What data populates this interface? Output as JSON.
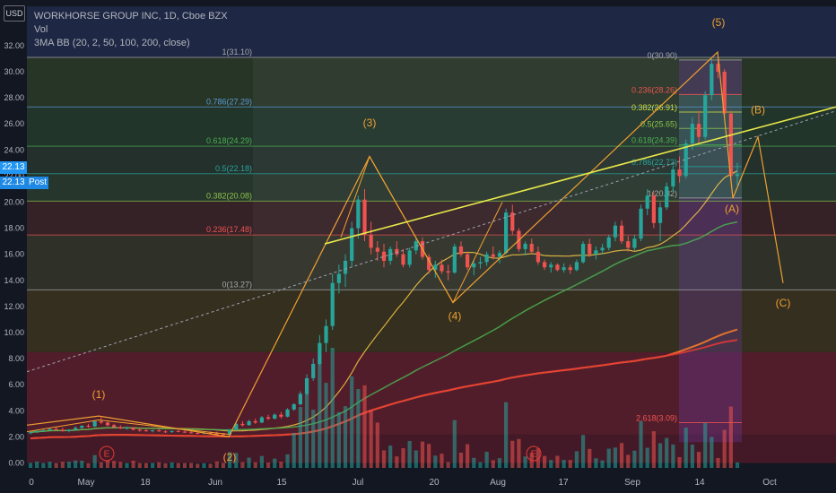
{
  "header": {
    "title": "WORKHORSE GROUP INC, 1D, Cboe BZX",
    "vol": "Vol",
    "indicator": "3MA BB (20, 2, 50, 100, 200, close)"
  },
  "currency": "USD",
  "price_tag": {
    "value": "22.13",
    "color": "#2196f3"
  },
  "post_tag": {
    "label": "22.13",
    "session": "Post",
    "color": "#1e88e5"
  },
  "chart_data": {
    "type": "candlestick",
    "symbol": "WKHS",
    "ylim": [
      0,
      33
    ],
    "y_ticks": [
      "32.00",
      "30.00",
      "28.00",
      "26.00",
      "24.00",
      "22.00",
      "20.00",
      "18.00",
      "16.00",
      "14.00",
      "12.00",
      "10.00",
      "8.00",
      "6.00",
      "4.00",
      "2.00",
      "0.00"
    ],
    "x_ticks": [
      "0",
      "May",
      "18",
      "Jun",
      "15",
      "Jul",
      "20",
      "Aug",
      "17",
      "Sep",
      "14",
      "Oct"
    ],
    "fib_retracement_1": [
      {
        "label": "1(31.10)",
        "value": 31.1,
        "color": "#a8a8a8"
      },
      {
        "label": "0.786(27.29)",
        "value": 27.29,
        "color": "#5b9bd5"
      },
      {
        "label": "0.618(24.29)",
        "value": 24.29,
        "color": "#4caf50"
      },
      {
        "label": "0.5(22.18)",
        "value": 22.18,
        "color": "#26a69a"
      },
      {
        "label": "0.382(20.08)",
        "value": 20.08,
        "color": "#8bc34a"
      },
      {
        "label": "0.236(17.48)",
        "value": 17.48,
        "color": "#ef5350"
      },
      {
        "label": "0(13.27)",
        "value": 13.27,
        "color": "#a8a8a8"
      }
    ],
    "fib_retracement_2": [
      {
        "label": "0(30.90)",
        "value": 30.9,
        "color": "#a8a8a8"
      },
      {
        "label": "0.236(28.26)",
        "value": 28.26,
        "color": "#ef5350"
      },
      {
        "label": "0.382(26.91)",
        "value": 26.91,
        "color": "#cddc39"
      },
      {
        "label": "0.5(25.65)",
        "value": 25.65,
        "color": "#8bc34a"
      },
      {
        "label": "0.618(24.39)",
        "value": 24.39,
        "color": "#4caf50"
      },
      {
        "label": "0.786(22.72)",
        "value": 22.72,
        "color": "#26a69a"
      },
      {
        "label": "1(20.32)",
        "value": 20.32,
        "color": "#a8a8a8"
      },
      {
        "label": "2.618(3.09)",
        "value": 3.09,
        "color": "#ef5350"
      }
    ],
    "wave_labels": [
      "(1)",
      "(2)",
      "(3)",
      "(4)",
      "(5)",
      "(A)",
      "(B)",
      "(C)"
    ],
    "earnings_markers": [
      "E",
      "E"
    ],
    "candles": [
      [
        2.3,
        2.4,
        2.2,
        2.35
      ],
      [
        2.35,
        2.5,
        2.3,
        2.45
      ],
      [
        2.45,
        2.6,
        2.4,
        2.5
      ],
      [
        2.5,
        2.7,
        2.45,
        2.6
      ],
      [
        2.6,
        2.75,
        2.5,
        2.55
      ],
      [
        2.55,
        2.7,
        2.4,
        2.45
      ],
      [
        2.45,
        2.6,
        2.35,
        2.55
      ],
      [
        2.55,
        2.8,
        2.5,
        2.7
      ],
      [
        2.7,
        2.9,
        2.6,
        2.85
      ],
      [
        2.85,
        3.0,
        2.7,
        2.8
      ],
      [
        2.8,
        3.3,
        2.75,
        3.2
      ],
      [
        3.2,
        3.5,
        3.0,
        3.1
      ],
      [
        3.1,
        3.2,
        2.8,
        2.9
      ],
      [
        2.9,
        3.0,
        2.7,
        2.75
      ],
      [
        2.75,
        2.9,
        2.6,
        2.65
      ],
      [
        2.65,
        2.8,
        2.55,
        2.7
      ],
      [
        2.7,
        2.75,
        2.5,
        2.55
      ],
      [
        2.55,
        2.65,
        2.4,
        2.5
      ],
      [
        2.5,
        2.6,
        2.4,
        2.45
      ],
      [
        2.45,
        2.55,
        2.35,
        2.5
      ],
      [
        2.5,
        2.6,
        2.4,
        2.42
      ],
      [
        2.42,
        2.5,
        2.3,
        2.38
      ],
      [
        2.38,
        2.5,
        2.3,
        2.45
      ],
      [
        2.45,
        2.55,
        2.35,
        2.4
      ],
      [
        2.4,
        2.5,
        2.3,
        2.35
      ],
      [
        2.35,
        2.45,
        2.25,
        2.3
      ],
      [
        2.3,
        2.4,
        2.2,
        2.28
      ],
      [
        2.28,
        2.4,
        2.2,
        2.32
      ],
      [
        2.32,
        2.42,
        2.22,
        2.3
      ],
      [
        2.3,
        2.4,
        2.1,
        2.2
      ],
      [
        2.2,
        2.3,
        2.05,
        2.15
      ],
      [
        2.15,
        2.6,
        2.1,
        2.55
      ],
      [
        2.55,
        3.1,
        2.5,
        3.0
      ],
      [
        3.0,
        3.2,
        2.8,
        2.9
      ],
      [
        2.9,
        3.3,
        2.85,
        3.2
      ],
      [
        3.2,
        3.4,
        3.0,
        3.1
      ],
      [
        3.1,
        3.6,
        3.05,
        3.5
      ],
      [
        3.5,
        3.7,
        3.3,
        3.4
      ],
      [
        3.4,
        3.8,
        3.35,
        3.7
      ],
      [
        3.7,
        3.9,
        3.4,
        3.55
      ],
      [
        3.55,
        4.2,
        3.5,
        4.1
      ],
      [
        4.1,
        4.6,
        4.0,
        4.5
      ],
      [
        4.5,
        5.5,
        4.4,
        5.3
      ],
      [
        5.3,
        6.8,
        5.2,
        6.5
      ],
      [
        6.5,
        8.0,
        6.3,
        7.6
      ],
      [
        7.6,
        9.8,
        7.5,
        9.2
      ],
      [
        9.2,
        11.0,
        8.5,
        10.5
      ],
      [
        10.5,
        14.5,
        10.2,
        13.8
      ],
      [
        13.8,
        15.2,
        13.0,
        14.5
      ],
      [
        14.5,
        16.0,
        13.5,
        15.5
      ],
      [
        15.5,
        18.5,
        15.0,
        18.0
      ],
      [
        18.0,
        20.5,
        17.2,
        20.2
      ],
      [
        20.2,
        21.0,
        17.0,
        17.5
      ],
      [
        17.5,
        18.5,
        16.0,
        16.5
      ],
      [
        16.5,
        17.0,
        15.5,
        16.2
      ],
      [
        16.2,
        16.8,
        15.0,
        15.5
      ],
      [
        15.5,
        16.6,
        15.2,
        16.4
      ],
      [
        16.4,
        17.0,
        15.8,
        16.0
      ],
      [
        16.0,
        16.4,
        15.0,
        15.2
      ],
      [
        15.2,
        16.5,
        15.0,
        16.3
      ],
      [
        16.3,
        17.2,
        16.0,
        17.0
      ],
      [
        17.0,
        17.3,
        15.6,
        15.8
      ],
      [
        15.8,
        16.0,
        14.5,
        14.8
      ],
      [
        14.8,
        15.5,
        14.2,
        15.2
      ],
      [
        15.2,
        15.6,
        14.5,
        14.7
      ],
      [
        14.7,
        15.2,
        14.0,
        14.6
      ],
      [
        14.6,
        16.8,
        14.5,
        16.6
      ],
      [
        16.6,
        17.0,
        15.8,
        16.0
      ],
      [
        16.0,
        16.2,
        14.8,
        15.0
      ],
      [
        15.0,
        15.5,
        14.4,
        15.3
      ],
      [
        15.3,
        15.8,
        14.9,
        15.4
      ],
      [
        15.4,
        16.2,
        15.1,
        16.0
      ],
      [
        16.0,
        16.6,
        15.6,
        15.8
      ],
      [
        15.8,
        16.3,
        15.3,
        16.1
      ],
      [
        16.1,
        19.5,
        16.0,
        19.2
      ],
      [
        19.2,
        19.8,
        17.5,
        17.8
      ],
      [
        17.8,
        18.0,
        16.2,
        16.4
      ],
      [
        16.4,
        17.0,
        15.9,
        16.8
      ],
      [
        16.8,
        17.2,
        16.0,
        16.2
      ],
      [
        16.2,
        16.6,
        15.2,
        15.4
      ],
      [
        15.4,
        15.6,
        14.8,
        15.0
      ],
      [
        15.0,
        15.4,
        14.6,
        15.2
      ],
      [
        15.2,
        15.3,
        14.7,
        14.8
      ],
      [
        14.8,
        15.3,
        14.6,
        15.0
      ],
      [
        15.0,
        15.2,
        14.5,
        14.8
      ],
      [
        14.8,
        15.6,
        14.7,
        15.4
      ],
      [
        15.4,
        17.0,
        15.3,
        16.8
      ],
      [
        16.8,
        17.2,
        15.8,
        16.0
      ],
      [
        16.0,
        16.6,
        15.6,
        16.3
      ],
      [
        16.3,
        16.8,
        16.0,
        16.5
      ],
      [
        16.5,
        17.5,
        16.3,
        17.3
      ],
      [
        17.3,
        18.5,
        17.0,
        18.2
      ],
      [
        18.2,
        18.6,
        16.8,
        17.0
      ],
      [
        17.0,
        17.4,
        16.2,
        16.5
      ],
      [
        16.5,
        17.5,
        16.3,
        17.2
      ],
      [
        17.2,
        19.8,
        17.0,
        19.5
      ],
      [
        19.5,
        21.0,
        19.0,
        20.5
      ],
      [
        20.5,
        20.8,
        18.0,
        18.4
      ],
      [
        18.4,
        20.0,
        17.0,
        19.6
      ],
      [
        19.6,
        21.5,
        19.4,
        21.2
      ],
      [
        21.2,
        22.8,
        20.8,
        22.5
      ],
      [
        22.5,
        23.5,
        21.5,
        22.0
      ],
      [
        22.0,
        24.8,
        21.8,
        24.5
      ],
      [
        24.5,
        26.5,
        24.0,
        26.0
      ],
      [
        26.0,
        27.0,
        24.5,
        25.0
      ],
      [
        25.0,
        28.5,
        24.8,
        28.2
      ],
      [
        28.2,
        31.0,
        27.8,
        30.6
      ],
      [
        30.6,
        31.1,
        29.5,
        30.0
      ],
      [
        30.0,
        30.2,
        26.5,
        26.8
      ],
      [
        26.8,
        27.0,
        21.5,
        22.0
      ],
      [
        22.0,
        23.0,
        21.3,
        22.13
      ]
    ],
    "volume_scale": "relative"
  }
}
